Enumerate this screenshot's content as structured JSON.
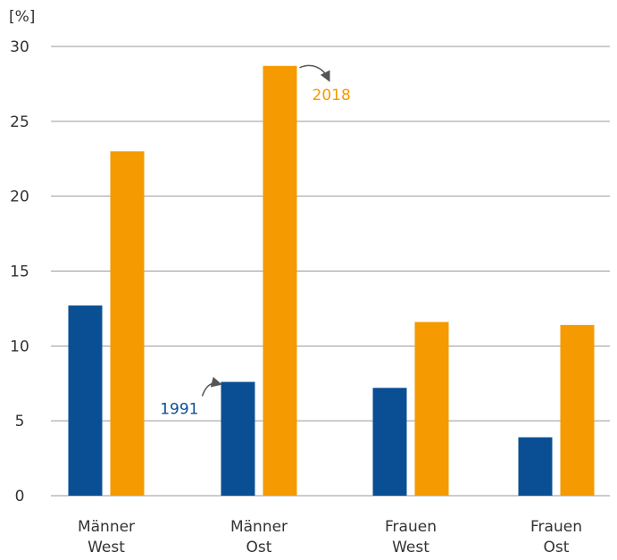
{
  "chart_data": {
    "type": "bar",
    "unit_label": "[%]",
    "categories": [
      [
        "Männer",
        "West"
      ],
      [
        "Männer",
        "Ost"
      ],
      [
        "Frauen",
        "West"
      ],
      [
        "Frauen",
        "Ost"
      ]
    ],
    "series": [
      {
        "name": "1991",
        "color": "#0a4f94",
        "values": [
          12.7,
          7.6,
          7.2,
          3.9
        ]
      },
      {
        "name": "2018",
        "color": "#f59a00",
        "values": [
          23.0,
          28.7,
          11.6,
          11.4
        ]
      }
    ],
    "ylim": [
      0,
      30
    ],
    "yticks": [
      0,
      5,
      10,
      15,
      20,
      25,
      30
    ],
    "grid": true,
    "annotations": [
      {
        "series": "2018",
        "category_index": 1,
        "text": "2018"
      },
      {
        "series": "1991",
        "category_index": 1,
        "text": "1991"
      }
    ]
  }
}
